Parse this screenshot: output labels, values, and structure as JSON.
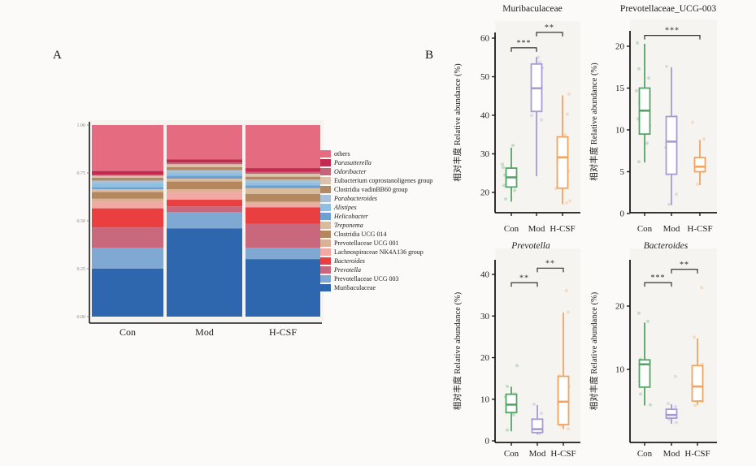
{
  "panel_a": {
    "label": "A",
    "x_categories": [
      "Con",
      "Mod",
      "H-CSF"
    ],
    "ytick_labels": [
      "1.00",
      "0.75",
      "0.50",
      "0.25",
      "0.00"
    ]
  },
  "panel_b": {
    "label": "B",
    "ylabel": "相对丰度 Relative abundance (%)",
    "x_categories": [
      "Con",
      "Mod",
      "H-CSF"
    ],
    "group_colors": {
      "Con": "#53A567",
      "Mod": "#A79BD2",
      "H-CSF": "#F2A45F"
    }
  },
  "chart_data": [
    {
      "id": "taxa-stacked-bar",
      "type": "bar",
      "stacked": true,
      "title": "",
      "categories": [
        "Con",
        "Mod",
        "H-CSF"
      ],
      "ylim": [
        0,
        1
      ],
      "ytick_labels": [
        "1.00",
        "0.75",
        "0.50",
        "0.25",
        "0.00"
      ],
      "legend_position": "right",
      "series": [
        {
          "name": "others",
          "color": "#E56C80",
          "italic": false,
          "values": [
            0.24,
            0.18,
            0.225
          ]
        },
        {
          "name": "Parasutterella",
          "color": "#C22A50",
          "italic": true,
          "values": [
            0.02,
            0.015,
            0.02
          ]
        },
        {
          "name": "Odoribacter",
          "color": "#C66579",
          "italic": true,
          "values": [
            0.005,
            0.01,
            0.01
          ]
        },
        {
          "name": "Eubacterium coprostanoligenes group",
          "color": "#DCC3AC",
          "italic": false,
          "values": [
            0.01,
            0.015,
            0.015
          ]
        },
        {
          "name": "Clostridia vadinBB60 group",
          "color": "#B08A65",
          "italic": false,
          "values": [
            0.015,
            0.015,
            0.015
          ]
        },
        {
          "name": "Parabacteroides",
          "color": "#A9C0D6",
          "italic": true,
          "values": [
            0.015,
            0.015,
            0.015
          ]
        },
        {
          "name": "Alistipes",
          "color": "#8CC1E4",
          "italic": true,
          "values": [
            0.02,
            0.015,
            0.015
          ]
        },
        {
          "name": "Helicobacter",
          "color": "#6F9FD0",
          "italic": true,
          "values": [
            0.01,
            0.015,
            0.015
          ]
        },
        {
          "name": "Treponema",
          "color": "#D9BB9E",
          "italic": true,
          "values": [
            0.015,
            0.015,
            0.03
          ]
        },
        {
          "name": "Clostridia UCG 014",
          "color": "#B5875F",
          "italic": false,
          "values": [
            0.035,
            0.04,
            0.04
          ]
        },
        {
          "name": "Prevotellaceae UCG 001",
          "color": "#DCB193",
          "italic": false,
          "values": [
            0.015,
            0.015,
            0.01
          ]
        },
        {
          "name": "Lachnospiraceae NK4A136 group",
          "color": "#F2A9A4",
          "italic": false,
          "values": [
            0.035,
            0.04,
            0.02
          ]
        },
        {
          "name": "Bacteroides",
          "color": "#EA3F40",
          "italic": true,
          "values": [
            0.1,
            0.035,
            0.085
          ]
        },
        {
          "name": "Prevotella",
          "color": "#C9687C",
          "italic": true,
          "values": [
            0.105,
            0.03,
            0.125
          ]
        },
        {
          "name": "Prevotellaceae UCG 003",
          "color": "#7FA8D3",
          "italic": false,
          "values": [
            0.11,
            0.085,
            0.06
          ]
        },
        {
          "name": "Muribaculaceae",
          "color": "#2F67AE",
          "italic": false,
          "values": [
            0.25,
            0.46,
            0.3
          ]
        }
      ]
    },
    {
      "id": "box-muribaculaceae",
      "type": "box",
      "title": "Muribaculaceae",
      "title_italic": false,
      "ylabel": "相对丰度 Relative abundance (%)",
      "categories": [
        "Con",
        "Mod",
        "H-CSF"
      ],
      "ylim": [
        14.5,
        63
      ],
      "yticks": [
        20,
        30,
        40,
        50,
        60
      ],
      "groups": [
        {
          "name": "Con",
          "color": "#53A567",
          "whisker_low": 17.6,
          "q1": 21.4,
          "median": 23.9,
          "q3": 26.3,
          "whisker_high": 31.6,
          "points": [
            [
              -8,
              24.5
            ],
            [
              -10,
              26.5
            ],
            [
              5,
              23.5
            ],
            [
              -6,
              22.3
            ],
            [
              -9,
              21.8
            ],
            [
              3,
              25.8
            ],
            [
              -7,
              18.3
            ],
            [
              2,
              32.2
            ],
            [
              -11,
              27.3
            ],
            [
              4,
              20.5
            ]
          ]
        },
        {
          "name": "Mod",
          "color": "#A79BD2",
          "whisker_low": 24.2,
          "q1": 41.0,
          "median": 47.0,
          "q3": 53.3,
          "whisker_high": 55.1,
          "points": [
            [
              4,
              53.8
            ],
            [
              7,
              52.3
            ],
            [
              -5,
              52.8
            ],
            [
              6,
              47.5
            ],
            [
              -4,
              44.3
            ],
            [
              3,
              43.2
            ],
            [
              5,
              41.2
            ],
            [
              -6,
              40.0
            ],
            [
              2,
              55.0
            ],
            [
              6,
              38.8
            ]
          ]
        },
        {
          "name": "H-CSF",
          "color": "#F2A45F",
          "whisker_low": 16.9,
          "q1": 21.1,
          "median": 29.1,
          "q3": 34.4,
          "whisker_high": 45.2,
          "points": [
            [
              8,
              45.5
            ],
            [
              6,
              40.3
            ],
            [
              -5,
              33.2
            ],
            [
              7,
              25.5
            ],
            [
              5,
              17.3
            ],
            [
              -8,
              21.0
            ],
            [
              4,
              30.0
            ],
            [
              -6,
              28.0
            ],
            [
              9,
              17.8
            ],
            [
              3,
              35.0
            ]
          ]
        }
      ],
      "significance": [
        {
          "from": "Con",
          "to": "Mod",
          "label": "***",
          "height": 57.5
        },
        {
          "from": "Mod",
          "to": "H-CSF",
          "label": "**",
          "height": 61.5
        }
      ]
    },
    {
      "id": "box-prevotellaceae-ucg-003",
      "type": "box",
      "title": "Prevotellaceae_UCG-003",
      "title_italic": false,
      "ylabel": "相对丰度 Relative abundance (%)",
      "categories": [
        "Con",
        "Mod",
        "H-CSF"
      ],
      "ylim": [
        -0.5,
        22.5
      ],
      "yticks": [
        0,
        5,
        10,
        15,
        20
      ],
      "groups": [
        {
          "name": "Con",
          "color": "#53A567",
          "whisker_low": 6.1,
          "q1": 9.5,
          "median": 12.3,
          "q3": 15.0,
          "whisker_high": 20.3,
          "points": [
            [
              -9,
              20.4
            ],
            [
              -7,
              17.3
            ],
            [
              5,
              16.2
            ],
            [
              -10,
              14.7
            ],
            [
              -6,
              13.4
            ],
            [
              4,
              12.5
            ],
            [
              -8,
              11.3
            ],
            [
              6,
              10.5
            ],
            [
              -5,
              9.7
            ],
            [
              3,
              8.4
            ],
            [
              -7,
              6.2
            ]
          ]
        },
        {
          "name": "Mod",
          "color": "#A79BD2",
          "whisker_low": 1.0,
          "q1": 4.7,
          "median": 8.6,
          "q3": 11.6,
          "whisker_high": 17.5,
          "points": [
            [
              -6,
              17.6
            ],
            [
              5,
              11.6
            ],
            [
              -4,
              10.3
            ],
            [
              6,
              9.1
            ],
            [
              3,
              8.7
            ],
            [
              -7,
              7.9
            ],
            [
              4,
              5.3
            ],
            [
              -5,
              4.7
            ],
            [
              6,
              2.3
            ],
            [
              -3,
              1.1
            ]
          ]
        },
        {
          "name": "H-CSF",
          "color": "#F2A45F",
          "whisker_low": 3.4,
          "q1": 5.0,
          "median": 5.6,
          "q3": 6.7,
          "whisker_high": 8.8,
          "points": [
            [
              5,
              8.9
            ],
            [
              -4,
              6.6
            ],
            [
              6,
              6.3
            ],
            [
              -6,
              5.9
            ],
            [
              3,
              5.6
            ],
            [
              -5,
              5.3
            ],
            [
              4,
              5.0
            ],
            [
              -3,
              3.5
            ],
            [
              -9,
              10.9
            ]
          ]
        }
      ],
      "significance": [
        {
          "from": "Con",
          "to": "H-CSF",
          "label": "***",
          "height": 21.3
        }
      ]
    },
    {
      "id": "box-prevotella",
      "type": "box",
      "title": "Prevotella",
      "title_italic": true,
      "ylabel": "相对丰度 Relative abundance (%)",
      "categories": [
        "Con",
        "Mod",
        "H-CSF"
      ],
      "ylim": [
        -1,
        43.5
      ],
      "yticks": [
        0,
        10,
        20,
        30,
        40
      ],
      "groups": [
        {
          "name": "Con",
          "color": "#53A567",
          "whisker_low": 2.3,
          "q1": 6.8,
          "median": 8.7,
          "q3": 11.2,
          "whisker_high": 13.0,
          "points": [
            [
              -5,
              13.1
            ],
            [
              4,
              11.3
            ],
            [
              -7,
              10.6
            ],
            [
              5,
              9.1
            ],
            [
              -4,
              8.6
            ],
            [
              6,
              7.6
            ],
            [
              -6,
              6.9
            ],
            [
              3,
              6.3
            ],
            [
              -5,
              2.6
            ],
            [
              7,
              18.1
            ]
          ]
        },
        {
          "name": "Mod",
          "color": "#A79BD2",
          "whisker_low": 1.5,
          "q1": 2.0,
          "median": 2.8,
          "q3": 5.2,
          "whisker_high": 8.6,
          "points": [
            [
              -4,
              8.8
            ],
            [
              5,
              6.6
            ],
            [
              -6,
              5.1
            ],
            [
              4,
              3.6
            ],
            [
              -3,
              2.9
            ],
            [
              6,
              2.4
            ],
            [
              -5,
              2.1
            ],
            [
              3,
              1.7
            ]
          ]
        },
        {
          "name": "H-CSF",
          "color": "#F2A45F",
          "whisker_low": 2.8,
          "q1": 3.9,
          "median": 9.4,
          "q3": 15.5,
          "whisker_high": 30.8,
          "points": [
            [
              6,
              30.9
            ],
            [
              4,
              36.1
            ],
            [
              -5,
              15.6
            ],
            [
              7,
              13.1
            ],
            [
              -4,
              11.6
            ],
            [
              5,
              9.6
            ],
            [
              -6,
              8.9
            ],
            [
              3,
              5.1
            ],
            [
              -3,
              3.6
            ],
            [
              6,
              2.9
            ]
          ]
        }
      ],
      "significance": [
        {
          "from": "Con",
          "to": "Mod",
          "label": "**",
          "height": 38
        },
        {
          "from": "Mod",
          "to": "H-CSF",
          "label": "**",
          "height": 41.5
        }
      ]
    },
    {
      "id": "box-bacteroides",
      "type": "box",
      "title": "Bacteroides",
      "title_italic": true,
      "ylabel": "相对丰度 Relative abundance (%)",
      "categories": [
        "Con",
        "Mod",
        "H-CSF"
      ],
      "ylim": [
        -1.5,
        27
      ],
      "yticks": [
        10,
        20
      ],
      "groups": [
        {
          "name": "Con",
          "color": "#53A567",
          "whisker_low": 4.3,
          "q1": 7.2,
          "median": 10.8,
          "q3": 11.5,
          "whisker_high": 17.4,
          "points": [
            [
              -7,
              18.9
            ],
            [
              4,
              17.6
            ],
            [
              -5,
              11.6
            ],
            [
              6,
              11.1
            ],
            [
              -4,
              10.6
            ],
            [
              5,
              9.6
            ],
            [
              -6,
              8.1
            ],
            [
              3,
              7.4
            ],
            [
              -5,
              6.1
            ],
            [
              7,
              4.4
            ]
          ]
        },
        {
          "name": "Mod",
          "color": "#A79BD2",
          "whisker_low": 1.4,
          "q1": 2.3,
          "median": 2.8,
          "q3": 3.7,
          "whisker_high": 4.5,
          "points": [
            [
              -4,
              4.6
            ],
            [
              5,
              4.1
            ],
            [
              -5,
              3.6
            ],
            [
              3,
              3.3
            ],
            [
              -6,
              2.9
            ],
            [
              4,
              2.5
            ],
            [
              -3,
              2.1
            ],
            [
              6,
              1.6
            ],
            [
              5,
              8.9
            ]
          ]
        },
        {
          "name": "H-CSF",
          "color": "#F2A45F",
          "whisker_low": 4.4,
          "q1": 5.0,
          "median": 7.3,
          "q3": 10.6,
          "whisker_high": 14.9,
          "points": [
            [
              5,
              22.9
            ],
            [
              -4,
              15.1
            ],
            [
              6,
              10.8
            ],
            [
              -5,
              9.6
            ],
            [
              4,
              8.6
            ],
            [
              -6,
              7.6
            ],
            [
              3,
              6.6
            ],
            [
              -4,
              5.6
            ],
            [
              6,
              4.9
            ],
            [
              -3,
              4.3
            ]
          ]
        }
      ],
      "significance": [
        {
          "from": "Con",
          "to": "Mod",
          "label": "***",
          "height": 23.7
        },
        {
          "from": "Mod",
          "to": "H-CSF",
          "label": "**",
          "height": 25.8
        }
      ]
    }
  ]
}
